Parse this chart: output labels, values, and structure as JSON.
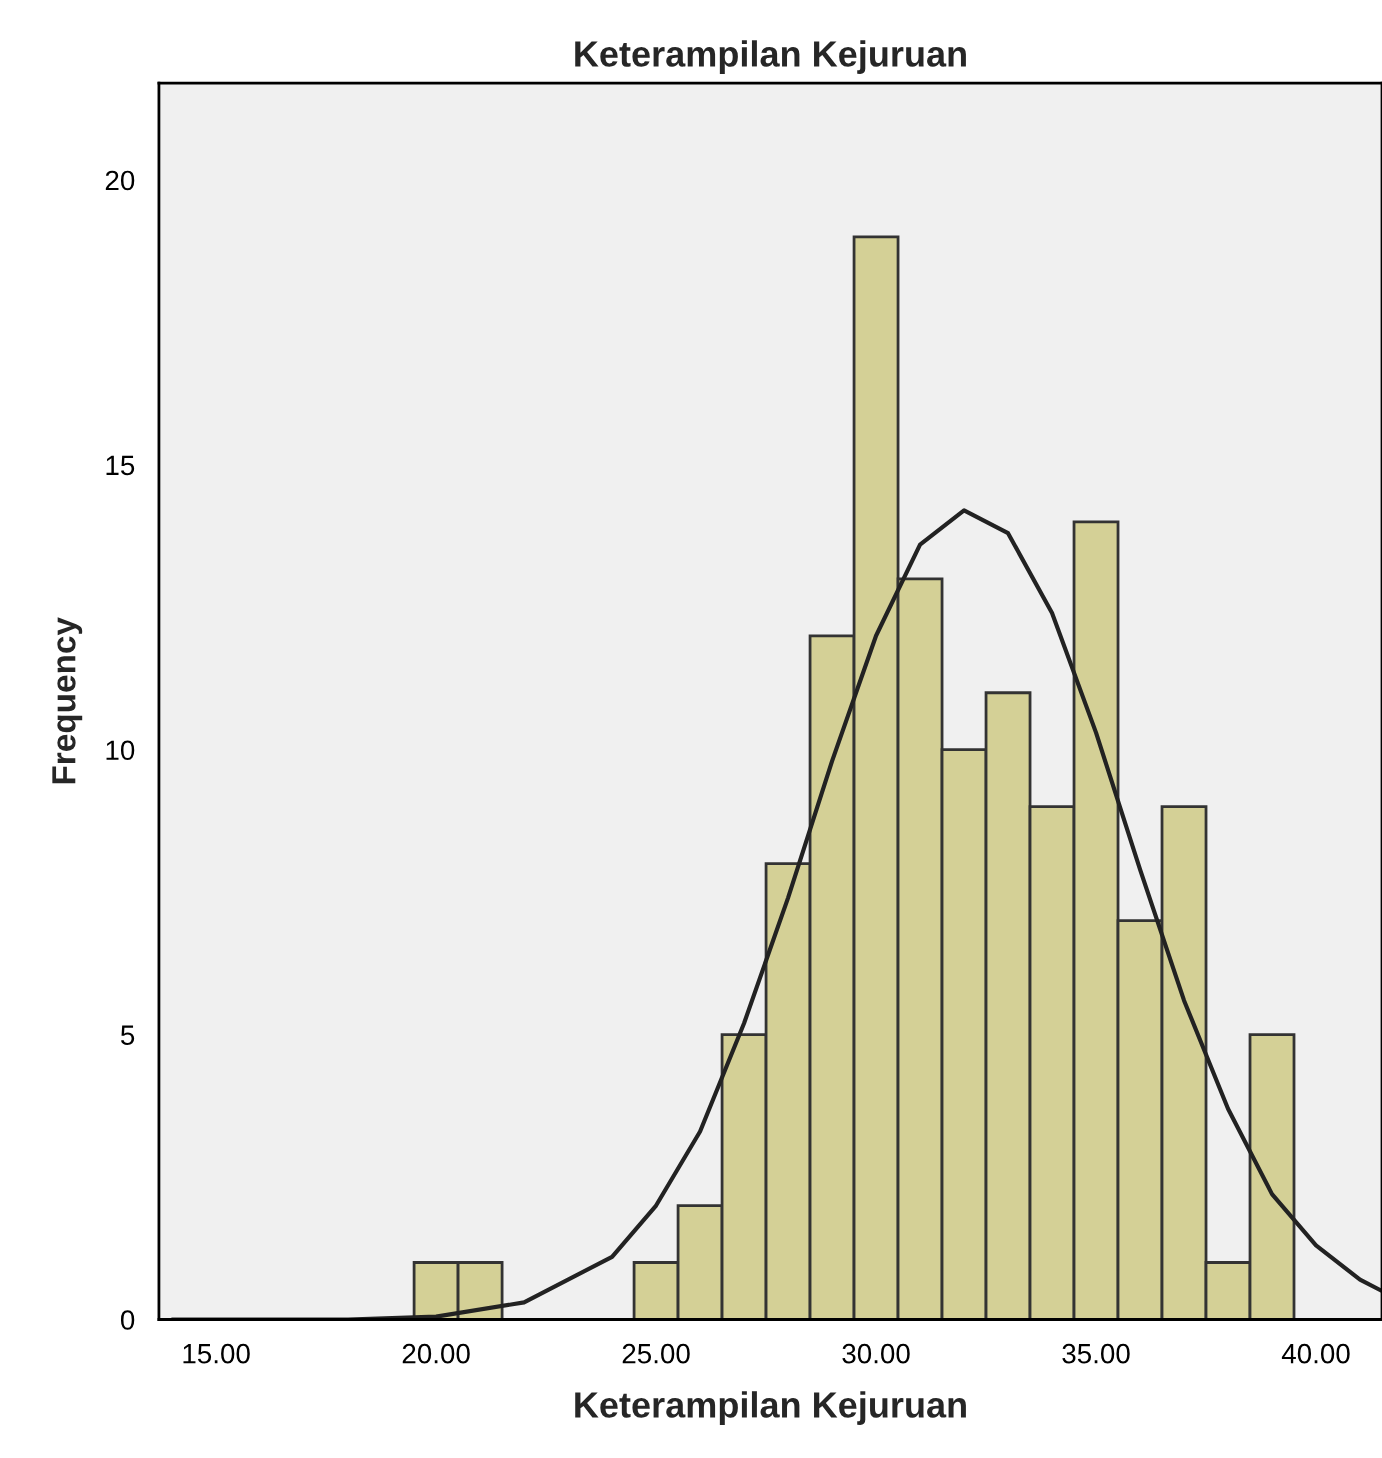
{
  "chart_data": {
    "type": "histogram",
    "title": "Keterampilan Kejuruan",
    "xlabel": "Keterampilan Kejuruan",
    "ylabel": "Frequency",
    "bins": [
      19.5,
      20.5,
      21.5,
      22.5,
      23.5,
      24.5,
      25.5,
      26.5,
      27.5,
      28.5,
      29.5,
      30.5,
      31.5,
      32.5,
      33.5,
      34.5,
      35.5,
      36.5,
      37.5,
      38.5,
      39.5
    ],
    "values": [
      1,
      1,
      0,
      0,
      0,
      1,
      2,
      5,
      8,
      12,
      19,
      13,
      10,
      11,
      9,
      14,
      7,
      9,
      1,
      5
    ],
    "color": "#d4d096",
    "series": [
      {
        "type": "line",
        "color": "#222222",
        "x": [
          14,
          18,
          20,
          22,
          24,
          25,
          26,
          27,
          28,
          29,
          30,
          31,
          32,
          33,
          34,
          35,
          36,
          37,
          38,
          39,
          40,
          41,
          41.5
        ],
        "values": [
          0,
          0,
          0.05,
          0.3,
          1.1,
          2,
          3.3,
          5.2,
          7.4,
          9.8,
          12,
          13.6,
          14.2,
          13.8,
          12.4,
          10.3,
          7.9,
          5.6,
          3.7,
          2.2,
          1.3,
          0.7,
          0.5
        ]
      }
    ],
    "xlim": [
      13.7,
      41.5
    ],
    "ylim": [
      0,
      21.7
    ],
    "xticks": [
      {
        "value": 15,
        "label": "15.00"
      },
      {
        "value": 20,
        "label": "20.00"
      },
      {
        "value": 25,
        "label": "25.00"
      },
      {
        "value": 30,
        "label": "30.00"
      },
      {
        "value": 35,
        "label": "35.00"
      },
      {
        "value": 40,
        "label": "40.00"
      }
    ],
    "yticks": [
      0,
      5,
      10,
      15,
      20
    ],
    "grid": false,
    "legend": false
  }
}
